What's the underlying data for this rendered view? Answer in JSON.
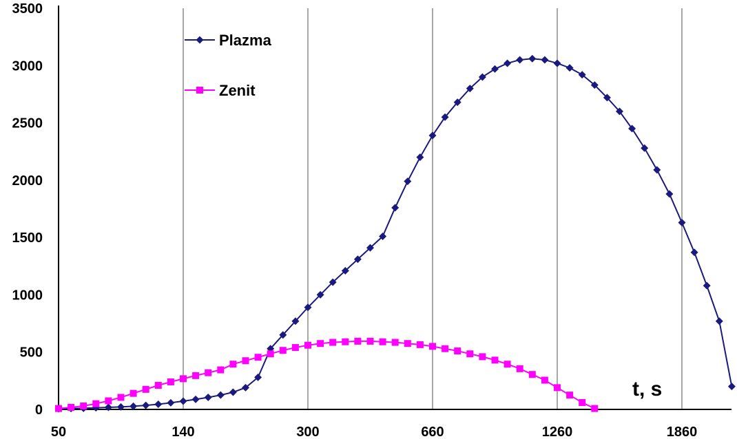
{
  "chart_data": {
    "type": "line",
    "title": "",
    "xlabel": "t, s",
    "ylabel": "",
    "ylim": [
      0,
      3500
    ],
    "y_ticks": [
      "0",
      "500",
      "1000",
      "1500",
      "2000",
      "2500",
      "3000",
      "3500"
    ],
    "x_ticks": [
      "50",
      "140",
      "300",
      "660",
      "1260",
      "1860"
    ],
    "grid": "vertical",
    "legend_position": "top-left",
    "series": [
      {
        "name": "Plazma",
        "color": "#1a1a7e",
        "marker": "diamond",
        "values": [
          5,
          8,
          10,
          14,
          18,
          22,
          28,
          35,
          45,
          58,
          72,
          88,
          105,
          125,
          150,
          190,
          280,
          530,
          650,
          770,
          890,
          1000,
          1110,
          1210,
          1310,
          1410,
          1510,
          1760,
          1990,
          2200,
          2390,
          2550,
          2680,
          2800,
          2900,
          2970,
          3020,
          3050,
          3060,
          3050,
          3020,
          2980,
          2920,
          2830,
          2720,
          2600,
          2450,
          2280,
          2090,
          1880,
          1630,
          1370,
          1080,
          770,
          200
        ]
      },
      {
        "name": "Zenit",
        "color": "#ff00ff",
        "marker": "square",
        "values": [
          8,
          18,
          30,
          50,
          75,
          105,
          140,
          175,
          210,
          240,
          268,
          295,
          320,
          345,
          395,
          425,
          455,
          485,
          515,
          540,
          560,
          575,
          585,
          590,
          595,
          595,
          590,
          585,
          575,
          565,
          550,
          530,
          510,
          485,
          460,
          430,
          395,
          355,
          305,
          255,
          190,
          125,
          60,
          8
        ]
      }
    ]
  }
}
